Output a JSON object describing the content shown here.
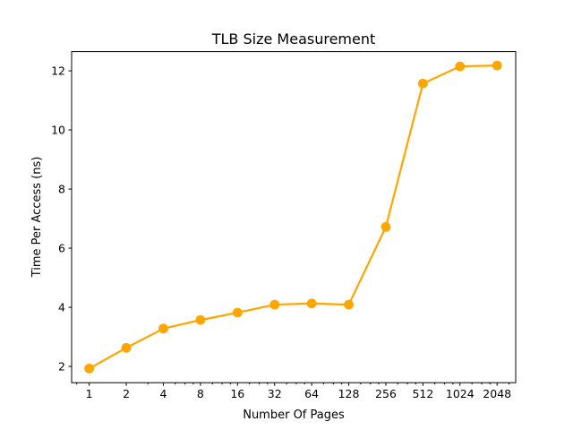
{
  "chart_data": {
    "type": "line",
    "title": "TLB Size Measurement",
    "xlabel": "Number Of Pages",
    "ylabel": "Time Per Access (ns)",
    "x_scale": "log2",
    "xlim": [
      0.72,
      2900
    ],
    "ylim": [
      1.45,
      12.65
    ],
    "grid": false,
    "legend": "none",
    "x_ticks": [
      {
        "value": 1,
        "label": "1"
      },
      {
        "value": 2,
        "label": "2"
      },
      {
        "value": 4,
        "label": "4"
      },
      {
        "value": 8,
        "label": "8"
      },
      {
        "value": 16,
        "label": "16"
      },
      {
        "value": 32,
        "label": "32"
      },
      {
        "value": 64,
        "label": "64"
      },
      {
        "value": 128,
        "label": "128"
      },
      {
        "value": 256,
        "label": "256"
      },
      {
        "value": 512,
        "label": "512"
      },
      {
        "value": 1024,
        "label": "1024"
      },
      {
        "value": 2048,
        "label": "2048"
      }
    ],
    "y_ticks": [
      {
        "value": 2,
        "label": "2"
      },
      {
        "value": 4,
        "label": "4"
      },
      {
        "value": 6,
        "label": "6"
      },
      {
        "value": 8,
        "label": "8"
      },
      {
        "value": 10,
        "label": "10"
      },
      {
        "value": 12,
        "label": "12"
      }
    ],
    "series": [
      {
        "color": "#FFA500",
        "x": [
          1,
          2,
          4,
          8,
          16,
          32,
          64,
          128,
          256,
          512,
          1024,
          2048
        ],
        "y": [
          1.93,
          2.63,
          3.28,
          3.57,
          3.82,
          4.09,
          4.13,
          4.09,
          6.72,
          11.57,
          12.15,
          12.18
        ]
      }
    ]
  }
}
